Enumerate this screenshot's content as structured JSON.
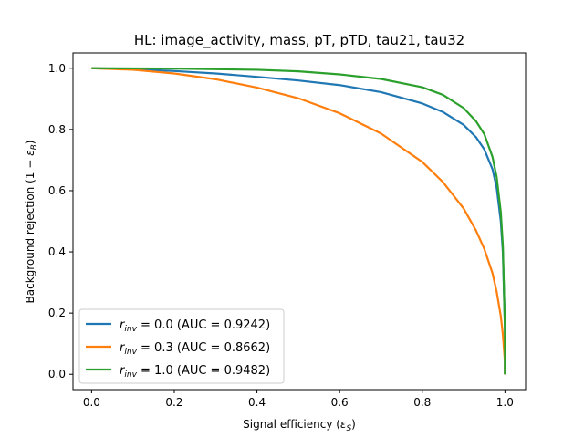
{
  "chart_data": {
    "type": "line",
    "title": "HL: image_activity, mass, pT, pTD, tau21, tau32",
    "xlabel": "Signal efficiency (εS)",
    "xlabel_parts": {
      "main": "Signal efficiency (",
      "sym": "ε",
      "sub": "S",
      "close": ")"
    },
    "ylabel": "Background rejection (1 − εB)",
    "ylabel_parts": {
      "main": "Background rejection (1 − ",
      "sym": "ε",
      "sub": "B",
      "close": ")"
    },
    "xlim": [
      -0.045,
      1.05
    ],
    "ylim": [
      -0.05,
      1.05
    ],
    "xticks": [
      {
        "value": 0.0,
        "label": "0.0"
      },
      {
        "value": 0.2,
        "label": "0.2"
      },
      {
        "value": 0.4,
        "label": "0.4"
      },
      {
        "value": 0.6,
        "label": "0.6"
      },
      {
        "value": 0.8,
        "label": "0.8"
      },
      {
        "value": 1.0,
        "label": "1.0"
      }
    ],
    "yticks": [
      {
        "value": 0.0,
        "label": "0.0"
      },
      {
        "value": 0.2,
        "label": "0.2"
      },
      {
        "value": 0.4,
        "label": "0.4"
      },
      {
        "value": 0.6,
        "label": "0.6"
      },
      {
        "value": 0.8,
        "label": "0.8"
      },
      {
        "value": 1.0,
        "label": "1.0"
      }
    ],
    "grid": false,
    "legend_position": "bottom-left",
    "series": [
      {
        "name": "r_inv = 0.0 (AUC = 0.9242)",
        "label_parts": {
          "sym": "r",
          "sub": "inv",
          "eq": " = 0.0",
          "rest": " (AUC  = 0.9242)"
        },
        "color": "#1f77b4",
        "x": [
          0.0,
          0.1,
          0.2,
          0.3,
          0.4,
          0.5,
          0.6,
          0.7,
          0.8,
          0.85,
          0.9,
          0.93,
          0.95,
          0.97,
          0.98,
          0.99,
          0.995,
          1.0,
          1.0
        ],
        "y": [
          1.0,
          0.997,
          0.991,
          0.983,
          0.972,
          0.96,
          0.945,
          0.922,
          0.885,
          0.857,
          0.815,
          0.775,
          0.735,
          0.67,
          0.61,
          0.5,
          0.4,
          0.15,
          0.0
        ]
      },
      {
        "name": "r_inv = 0.3 (AUC = 0.8662)",
        "label_parts": {
          "sym": "r",
          "sub": "inv",
          "eq": " = 0.3",
          "rest": " (AUC  = 0.8662)"
        },
        "color": "#ff7f0e",
        "x": [
          0.0,
          0.1,
          0.2,
          0.3,
          0.4,
          0.5,
          0.6,
          0.7,
          0.8,
          0.85,
          0.9,
          0.93,
          0.95,
          0.97,
          0.98,
          0.99,
          0.995,
          1.0,
          1.0
        ],
        "y": [
          1.0,
          0.995,
          0.983,
          0.964,
          0.937,
          0.902,
          0.853,
          0.787,
          0.694,
          0.628,
          0.542,
          0.47,
          0.41,
          0.33,
          0.27,
          0.19,
          0.13,
          0.04,
          0.0
        ]
      },
      {
        "name": "r_inv = 1.0 (AUC = 0.9482)",
        "label_parts": {
          "sym": "r",
          "sub": "inv",
          "eq": " = 1.0",
          "rest": " (AUC  = 0.9482)"
        },
        "color": "#2ca02c",
        "x": [
          0.0,
          0.1,
          0.2,
          0.3,
          0.4,
          0.5,
          0.6,
          0.7,
          0.8,
          0.85,
          0.9,
          0.93,
          0.95,
          0.97,
          0.98,
          0.99,
          0.995,
          1.0,
          1.0
        ],
        "y": [
          1.0,
          0.9995,
          0.999,
          0.997,
          0.995,
          0.99,
          0.98,
          0.965,
          0.938,
          0.913,
          0.87,
          0.827,
          0.785,
          0.71,
          0.645,
          0.53,
          0.42,
          0.15,
          0.0
        ]
      }
    ]
  }
}
